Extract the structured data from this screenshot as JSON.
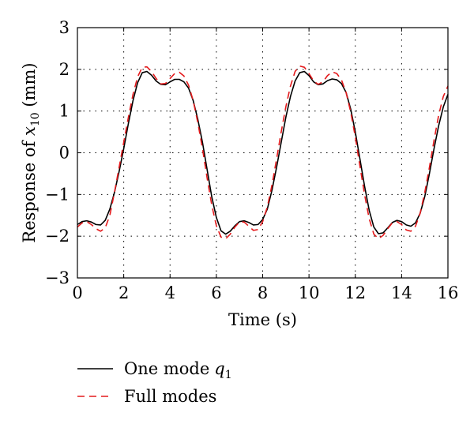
{
  "chart_data": {
    "type": "line",
    "xlabel": "Time (s)",
    "ylabel": {
      "prefix": "Response of ",
      "var": "x",
      "sub": "10",
      "suffix": " (mm)"
    },
    "xlim": [
      0,
      16
    ],
    "ylim": [
      -3,
      3
    ],
    "x_ticks": [
      "0",
      "2",
      "4",
      "6",
      "8",
      "10",
      "12",
      "14",
      "16"
    ],
    "y_ticks": [
      "−3",
      "−2",
      "−1",
      "0",
      "1",
      "2",
      "3"
    ],
    "grid": true,
    "legend_position": "below",
    "series": [
      {
        "name": "One mode",
        "name_var": "q",
        "name_sub": "1",
        "color": "#000000",
        "dash": "solid",
        "points": [
          [
            0,
            -1.72
          ],
          [
            0.2,
            -1.65
          ],
          [
            0.4,
            -1.63
          ],
          [
            0.6,
            -1.66
          ],
          [
            0.8,
            -1.72
          ],
          [
            1.0,
            -1.73
          ],
          [
            1.2,
            -1.62
          ],
          [
            1.4,
            -1.35
          ],
          [
            1.6,
            -0.95
          ],
          [
            1.8,
            -0.45
          ],
          [
            2.0,
            0.1
          ],
          [
            2.2,
            0.7
          ],
          [
            2.4,
            1.25
          ],
          [
            2.6,
            1.68
          ],
          [
            2.8,
            1.92
          ],
          [
            3.0,
            1.95
          ],
          [
            3.2,
            1.86
          ],
          [
            3.4,
            1.72
          ],
          [
            3.6,
            1.64
          ],
          [
            3.8,
            1.63
          ],
          [
            4.0,
            1.7
          ],
          [
            4.2,
            1.76
          ],
          [
            4.4,
            1.76
          ],
          [
            4.6,
            1.7
          ],
          [
            4.8,
            1.55
          ],
          [
            5.0,
            1.25
          ],
          [
            5.2,
            0.8
          ],
          [
            5.4,
            0.25
          ],
          [
            5.6,
            -0.4
          ],
          [
            5.8,
            -1.05
          ],
          [
            6.0,
            -1.55
          ],
          [
            6.2,
            -1.87
          ],
          [
            6.4,
            -1.95
          ],
          [
            6.6,
            -1.88
          ],
          [
            6.8,
            -1.75
          ],
          [
            7.0,
            -1.65
          ],
          [
            7.2,
            -1.63
          ],
          [
            7.4,
            -1.67
          ],
          [
            7.6,
            -1.73
          ],
          [
            7.8,
            -1.72
          ],
          [
            8.0,
            -1.6
          ],
          [
            8.2,
            -1.35
          ],
          [
            8.4,
            -0.9
          ],
          [
            8.6,
            -0.35
          ],
          [
            8.8,
            0.25
          ],
          [
            9.0,
            0.85
          ],
          [
            9.2,
            1.35
          ],
          [
            9.4,
            1.72
          ],
          [
            9.6,
            1.92
          ],
          [
            9.8,
            1.95
          ],
          [
            10.0,
            1.85
          ],
          [
            10.2,
            1.7
          ],
          [
            10.4,
            1.63
          ],
          [
            10.6,
            1.65
          ],
          [
            10.8,
            1.73
          ],
          [
            11.0,
            1.77
          ],
          [
            11.2,
            1.75
          ],
          [
            11.4,
            1.66
          ],
          [
            11.6,
            1.45
          ],
          [
            11.8,
            1.05
          ],
          [
            12.0,
            0.5
          ],
          [
            12.2,
            -0.15
          ],
          [
            12.4,
            -0.8
          ],
          [
            12.6,
            -1.38
          ],
          [
            12.8,
            -1.78
          ],
          [
            13.0,
            -1.94
          ],
          [
            13.2,
            -1.92
          ],
          [
            13.4,
            -1.8
          ],
          [
            13.6,
            -1.67
          ],
          [
            13.8,
            -1.62
          ],
          [
            14.0,
            -1.65
          ],
          [
            14.2,
            -1.73
          ],
          [
            14.4,
            -1.76
          ],
          [
            14.6,
            -1.68
          ],
          [
            14.8,
            -1.45
          ],
          [
            15.0,
            -1.05
          ],
          [
            15.2,
            -0.5
          ],
          [
            15.4,
            0.1
          ],
          [
            15.6,
            0.65
          ],
          [
            15.8,
            1.1
          ],
          [
            16.0,
            1.4
          ]
        ]
      },
      {
        "name": "Full modes",
        "color": "#e41a1c",
        "dash": "dashed",
        "points": [
          [
            0,
            -1.78
          ],
          [
            0.2,
            -1.68
          ],
          [
            0.4,
            -1.65
          ],
          [
            0.6,
            -1.72
          ],
          [
            0.8,
            -1.82
          ],
          [
            1.0,
            -1.88
          ],
          [
            1.2,
            -1.8
          ],
          [
            1.4,
            -1.5
          ],
          [
            1.6,
            -0.95
          ],
          [
            1.8,
            -0.35
          ],
          [
            2.0,
            0.25
          ],
          [
            2.2,
            0.85
          ],
          [
            2.4,
            1.4
          ],
          [
            2.6,
            1.82
          ],
          [
            2.8,
            2.05
          ],
          [
            3.0,
            2.06
          ],
          [
            3.2,
            1.95
          ],
          [
            3.4,
            1.78
          ],
          [
            3.6,
            1.65
          ],
          [
            3.8,
            1.66
          ],
          [
            4.0,
            1.78
          ],
          [
            4.2,
            1.9
          ],
          [
            4.4,
            1.93
          ],
          [
            4.6,
            1.84
          ],
          [
            4.8,
            1.62
          ],
          [
            5.0,
            1.25
          ],
          [
            5.2,
            0.72
          ],
          [
            5.4,
            0.1
          ],
          [
            5.6,
            -0.6
          ],
          [
            5.8,
            -1.25
          ],
          [
            6.0,
            -1.75
          ],
          [
            6.2,
            -2.02
          ],
          [
            6.4,
            -2.06
          ],
          [
            6.6,
            -1.95
          ],
          [
            6.8,
            -1.78
          ],
          [
            7.0,
            -1.66
          ],
          [
            7.2,
            -1.66
          ],
          [
            7.4,
            -1.76
          ],
          [
            7.6,
            -1.86
          ],
          [
            7.8,
            -1.84
          ],
          [
            8.0,
            -1.65
          ],
          [
            8.2,
            -1.3
          ],
          [
            8.4,
            -0.78
          ],
          [
            8.6,
            -0.15
          ],
          [
            8.8,
            0.5
          ],
          [
            9.0,
            1.1
          ],
          [
            9.2,
            1.6
          ],
          [
            9.4,
            1.95
          ],
          [
            9.6,
            2.08
          ],
          [
            9.8,
            2.05
          ],
          [
            10.0,
            1.9
          ],
          [
            10.2,
            1.72
          ],
          [
            10.4,
            1.64
          ],
          [
            10.6,
            1.7
          ],
          [
            10.8,
            1.85
          ],
          [
            11.0,
            1.94
          ],
          [
            11.2,
            1.9
          ],
          [
            11.4,
            1.75
          ],
          [
            11.6,
            1.45
          ],
          [
            11.8,
            0.98
          ],
          [
            12.0,
            0.38
          ],
          [
            12.2,
            -0.32
          ],
          [
            12.4,
            -1.0
          ],
          [
            12.6,
            -1.58
          ],
          [
            12.8,
            -1.95
          ],
          [
            13.0,
            -2.06
          ],
          [
            13.2,
            -1.98
          ],
          [
            13.4,
            -1.82
          ],
          [
            13.6,
            -1.68
          ],
          [
            13.8,
            -1.65
          ],
          [
            14.0,
            -1.72
          ],
          [
            14.2,
            -1.85
          ],
          [
            14.4,
            -1.88
          ],
          [
            14.6,
            -1.76
          ],
          [
            14.8,
            -1.45
          ],
          [
            15.0,
            -0.95
          ],
          [
            15.2,
            -0.35
          ],
          [
            15.4,
            0.3
          ],
          [
            15.6,
            0.9
          ],
          [
            15.8,
            1.35
          ],
          [
            16.0,
            1.6
          ]
        ]
      }
    ]
  }
}
